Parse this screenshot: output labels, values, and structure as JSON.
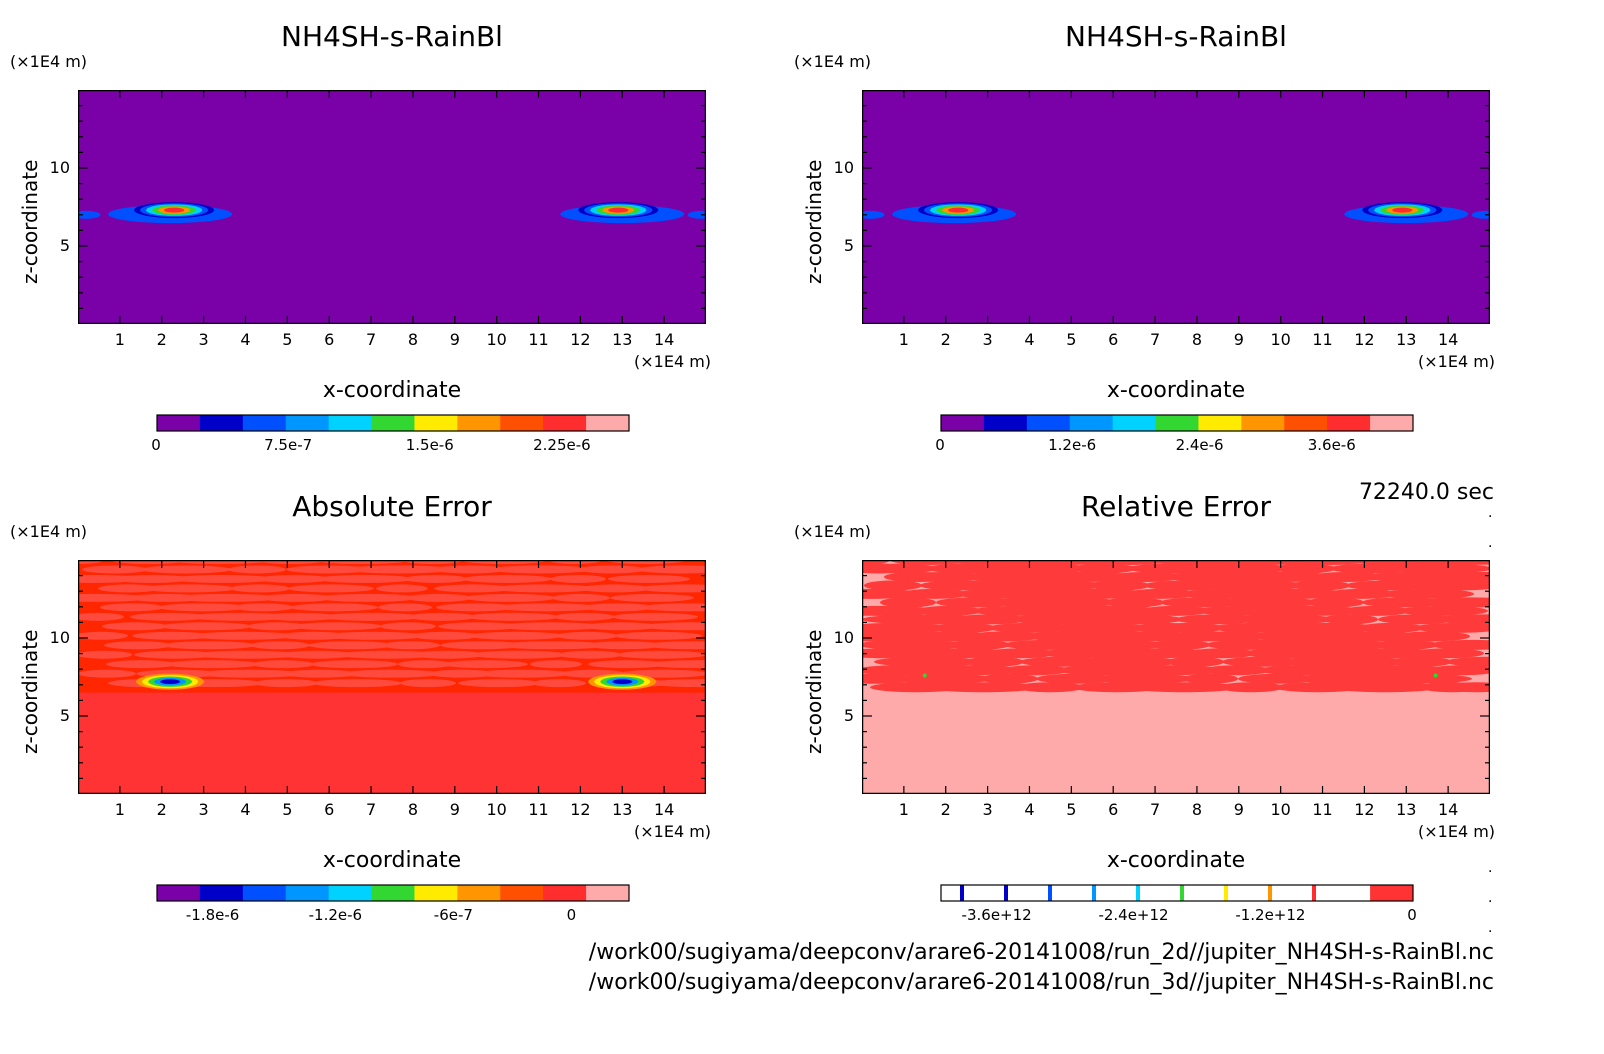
{
  "time_label": "72240.0 sec",
  "paths": [
    "/work00/sugiyama/deepconv/arare6-20141008/run_2d//jupiter_NH4SH-s-RainBl.nc",
    "/work00/sugiyama/deepconv/arare6-20141008/run_3d//jupiter_NH4SH-s-RainBl.nc"
  ],
  "chart_data": [
    {
      "type": "heatmap",
      "title": "NH4SH-s-RainBl",
      "xlabel": "x-coordinate",
      "ylabel": "z-coordinate",
      "x_unit": "(×1E4 m)",
      "y_unit": "(×1E4 m)",
      "xticks": [
        "1",
        "2",
        "3",
        "4",
        "5",
        "6",
        "7",
        "8",
        "9",
        "10",
        "11",
        "12",
        "13",
        "14"
      ],
      "yticks": [
        "5",
        "10"
      ],
      "xlim": [
        0,
        15
      ],
      "ylim": [
        0,
        15
      ],
      "colorbar_labels": [
        "0",
        "7.5e-7",
        "1.5e-6",
        "2.25e-6"
      ],
      "colorbar_colors": [
        "#7a00a8",
        "#0000c8",
        "#0050ff",
        "#0096ff",
        "#00d2ff",
        "#32d732",
        "#ffeb00",
        "#ff9600",
        "#ff5000",
        "#ff2d2d",
        "#ffaaaa"
      ],
      "background": "#7a00a8"
    },
    {
      "type": "heatmap",
      "title": "NH4SH-s-RainBl",
      "xlabel": "x-coordinate",
      "ylabel": "z-coordinate",
      "x_unit": "(×1E4 m)",
      "y_unit": "(×1E4 m)",
      "xticks": [
        "1",
        "2",
        "3",
        "4",
        "5",
        "6",
        "7",
        "8",
        "9",
        "10",
        "11",
        "12",
        "13",
        "14"
      ],
      "yticks": [
        "5",
        "10"
      ],
      "xlim": [
        0,
        15
      ],
      "ylim": [
        0,
        15
      ],
      "colorbar_labels": [
        "0",
        "1.2e-6",
        "2.4e-6",
        "3.6e-6"
      ],
      "colorbar_colors": [
        "#7a00a8",
        "#0000c8",
        "#0050ff",
        "#0096ff",
        "#00d2ff",
        "#32d732",
        "#ffeb00",
        "#ff9600",
        "#ff5000",
        "#ff2d2d",
        "#ffaaaa"
      ],
      "background": "#7a00a8"
    },
    {
      "type": "heatmap",
      "title": "Absolute Error",
      "xlabel": "x-coordinate",
      "ylabel": "z-coordinate",
      "x_unit": "(×1E4 m)",
      "y_unit": "(×1E4 m)",
      "xticks": [
        "1",
        "2",
        "3",
        "4",
        "5",
        "6",
        "7",
        "8",
        "9",
        "10",
        "11",
        "12",
        "13",
        "14"
      ],
      "yticks": [
        "5",
        "10"
      ],
      "xlim": [
        0,
        15
      ],
      "ylim": [
        0,
        15
      ],
      "colorbar_labels": [
        "-1.8e-6",
        "-1.2e-6",
        "-6e-7",
        "0"
      ],
      "colorbar_colors": [
        "#7a00a8",
        "#0000c8",
        "#0050ff",
        "#0096ff",
        "#00d2ff",
        "#32d732",
        "#ffeb00",
        "#ff9600",
        "#ff5000",
        "#ff2d2d",
        "#ffaaaa"
      ],
      "background": "#ff3333"
    },
    {
      "type": "heatmap",
      "title": "Relative Error",
      "xlabel": "x-coordinate",
      "ylabel": "z-coordinate",
      "x_unit": "(×1E4 m)",
      "y_unit": "(×1E4 m)",
      "xticks": [
        "1",
        "2",
        "3",
        "4",
        "5",
        "6",
        "7",
        "8",
        "9",
        "10",
        "11",
        "12",
        "13",
        "14"
      ],
      "yticks": [
        "5",
        "10"
      ],
      "xlim": [
        0,
        15
      ],
      "ylim": [
        0,
        15
      ],
      "colorbar_labels": [
        "-3.6e+12",
        "-2.4e+12",
        "-1.2e+12",
        "0"
      ],
      "colorbar_colors": [
        "#ffffff",
        "#ffffff",
        "#ffffff",
        "#ffffff",
        "#ffffff",
        "#ffffff",
        "#ffffff",
        "#ffffff",
        "#ffffff",
        "#ffffff",
        "#ff3333"
      ],
      "background": "#ffaaaa"
    }
  ]
}
